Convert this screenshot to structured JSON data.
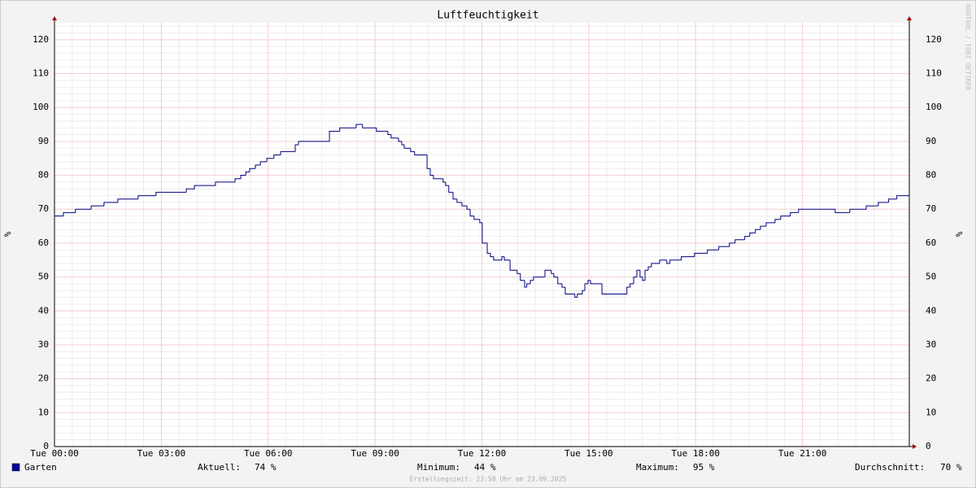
{
  "chart_data": {
    "type": "line",
    "title": "Luftfeuchtigkeit",
    "y_label": "%",
    "side_label": "RRDTOOL / TOBI OETIKER",
    "x": [
      0,
      0.25,
      0.59,
      1.03,
      1.39,
      1.78,
      2.35,
      2.85,
      3.7,
      3.93,
      4.52,
      5.07,
      5.23,
      5.37,
      5.48,
      5.64,
      5.78,
      5.96,
      6.16,
      6.35,
      6.76,
      6.85,
      7.72,
      8.01,
      8.47,
      8.65,
      9.04,
      9.36,
      9.45,
      9.66,
      9.75,
      9.82,
      10.0,
      10.11,
      10.46,
      10.55,
      10.64,
      10.91,
      10.98,
      11.07,
      11.19,
      11.3,
      11.44,
      11.58,
      11.67,
      11.78,
      11.94,
      12.01,
      12.15,
      12.24,
      12.33,
      12.56,
      12.63,
      12.79,
      12.99,
      13.08,
      13.2,
      13.26,
      13.36,
      13.45,
      13.77,
      13.95,
      14.02,
      14.13,
      14.25,
      14.34,
      14.61,
      14.68,
      14.82,
      14.89,
      14.98,
      15.05,
      15.37,
      16.07,
      16.16,
      16.26,
      16.35,
      16.44,
      16.51,
      16.58,
      16.67,
      16.76,
      16.99,
      17.19,
      17.28,
      17.6,
      17.97,
      18.33,
      18.65,
      18.95,
      19.11,
      19.38,
      19.52,
      19.68,
      19.82,
      19.98,
      20.23,
      20.39,
      20.66,
      20.89,
      21.92,
      22.33,
      22.79,
      23.13,
      23.42,
      23.65
    ],
    "series": [
      {
        "name": "Garten",
        "color": "#000080",
        "legend_color": "#0000a0",
        "values": [
          68,
          69,
          70,
          71,
          72,
          73,
          74,
          75,
          76,
          77,
          78,
          79,
          80,
          81,
          82,
          83,
          84,
          85,
          86,
          87,
          89,
          90,
          93,
          94,
          95,
          94,
          93,
          92,
          91,
          90,
          89,
          88,
          87,
          86,
          82,
          80,
          79,
          78,
          77,
          75,
          73,
          72,
          71,
          70,
          68,
          67,
          66,
          60,
          57,
          56,
          55,
          56,
          55,
          52,
          51,
          49,
          47,
          48,
          49,
          50,
          52,
          51,
          50,
          48,
          47,
          45,
          44,
          45,
          46,
          48,
          49,
          48,
          45,
          47,
          48,
          50,
          52,
          50,
          49,
          52,
          53,
          54,
          55,
          54,
          55,
          56,
          57,
          58,
          59,
          60,
          61,
          62,
          63,
          64,
          65,
          66,
          67,
          68,
          69,
          70,
          69,
          70,
          71,
          72,
          73,
          74
        ]
      }
    ],
    "xlim": [
      0,
      24
    ],
    "xticks": [
      {
        "value": 0,
        "label": "Tue 00:00"
      },
      {
        "value": 3,
        "label": "Tue 03:00"
      },
      {
        "value": 6,
        "label": "Tue 06:00"
      },
      {
        "value": 9,
        "label": "Tue 09:00"
      },
      {
        "value": 12,
        "label": "Tue 12:00"
      },
      {
        "value": 15,
        "label": "Tue 15:00"
      },
      {
        "value": 18,
        "label": "Tue 18:00"
      },
      {
        "value": 21,
        "label": "Tue 21:00"
      }
    ],
    "ylim": [
      0,
      125
    ],
    "yticks": [
      0,
      10,
      20,
      30,
      40,
      50,
      60,
      70,
      80,
      90,
      100,
      110,
      120
    ],
    "grid": true,
    "stats": [
      {
        "label": "Aktuell:",
        "value": "74 %"
      },
      {
        "label": "Minimum:",
        "value": "44 %"
      },
      {
        "label": "Maximum:",
        "value": "95 %"
      },
      {
        "label": "Durchschnitt:",
        "value": "70 %"
      }
    ],
    "footer": "Erstellungszeit: 23:58 Uhr am 23.09.2025"
  }
}
